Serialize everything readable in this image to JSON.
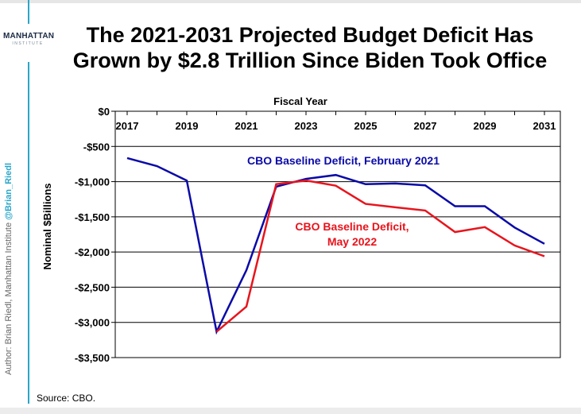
{
  "logo": {
    "main": "MANHATTAN",
    "sub": "INSTITUTE"
  },
  "title_line1": "The 2021-2031 Projected Budget Deficit Has",
  "title_line2": "Grown by $2.8 Trillion Since Biden Took Office",
  "author_text": "Author: Brian Riedl, Manhattan Institute ",
  "author_handle": "@Brian_Riedl",
  "source": "Source: CBO.",
  "colors": {
    "series1": "#0a0aa8",
    "series2": "#e8141c",
    "accent": "#2aa6c9"
  },
  "chart_data": {
    "type": "line",
    "xlabel": "Fiscal Year",
    "ylabel": "Nominal $Billions",
    "x_axis_position": "top",
    "xticks": [
      "2017",
      "2019",
      "2021",
      "2023",
      "2025",
      "2027",
      "2029",
      "2031"
    ],
    "yticks": [
      "$0",
      "-$500",
      "-$1,000",
      "-$1,500",
      "-$2,000",
      "-$2,500",
      "-$3,000",
      "-$3,500"
    ],
    "ylim": [
      -3500,
      0
    ],
    "xlim": [
      2017,
      2031
    ],
    "grid": true,
    "series": [
      {
        "name": "CBO Baseline Deficit, February 2021",
        "color": "#0a0aa8",
        "x": [
          2017,
          2018,
          2019,
          2020,
          2021,
          2022,
          2023,
          2024,
          2025,
          2026,
          2027,
          2028,
          2029,
          2030,
          2031
        ],
        "values": [
          -665,
          -779,
          -984,
          -3132,
          -2258,
          -1072,
          -961,
          -905,
          -1036,
          -1026,
          -1052,
          -1349,
          -1349,
          -1652,
          -1883
        ]
      },
      {
        "name": "CBO Baseline Deficit, May 2022",
        "color": "#e8141c",
        "x": [
          2020,
          2021,
          2022,
          2023,
          2024,
          2025,
          2026,
          2027,
          2028,
          2029,
          2030,
          2031
        ],
        "values": [
          -3132,
          -2775,
          -1036,
          -984,
          -1058,
          -1316,
          -1365,
          -1410,
          -1716,
          -1646,
          -1907,
          -2060
        ]
      }
    ],
    "annotations": [
      {
        "series": 0,
        "lines": [
          "CBO Baseline Deficit, February 2021"
        ]
      },
      {
        "series": 1,
        "lines": [
          "CBO Baseline Deficit,",
          "May 2022"
        ]
      }
    ]
  }
}
